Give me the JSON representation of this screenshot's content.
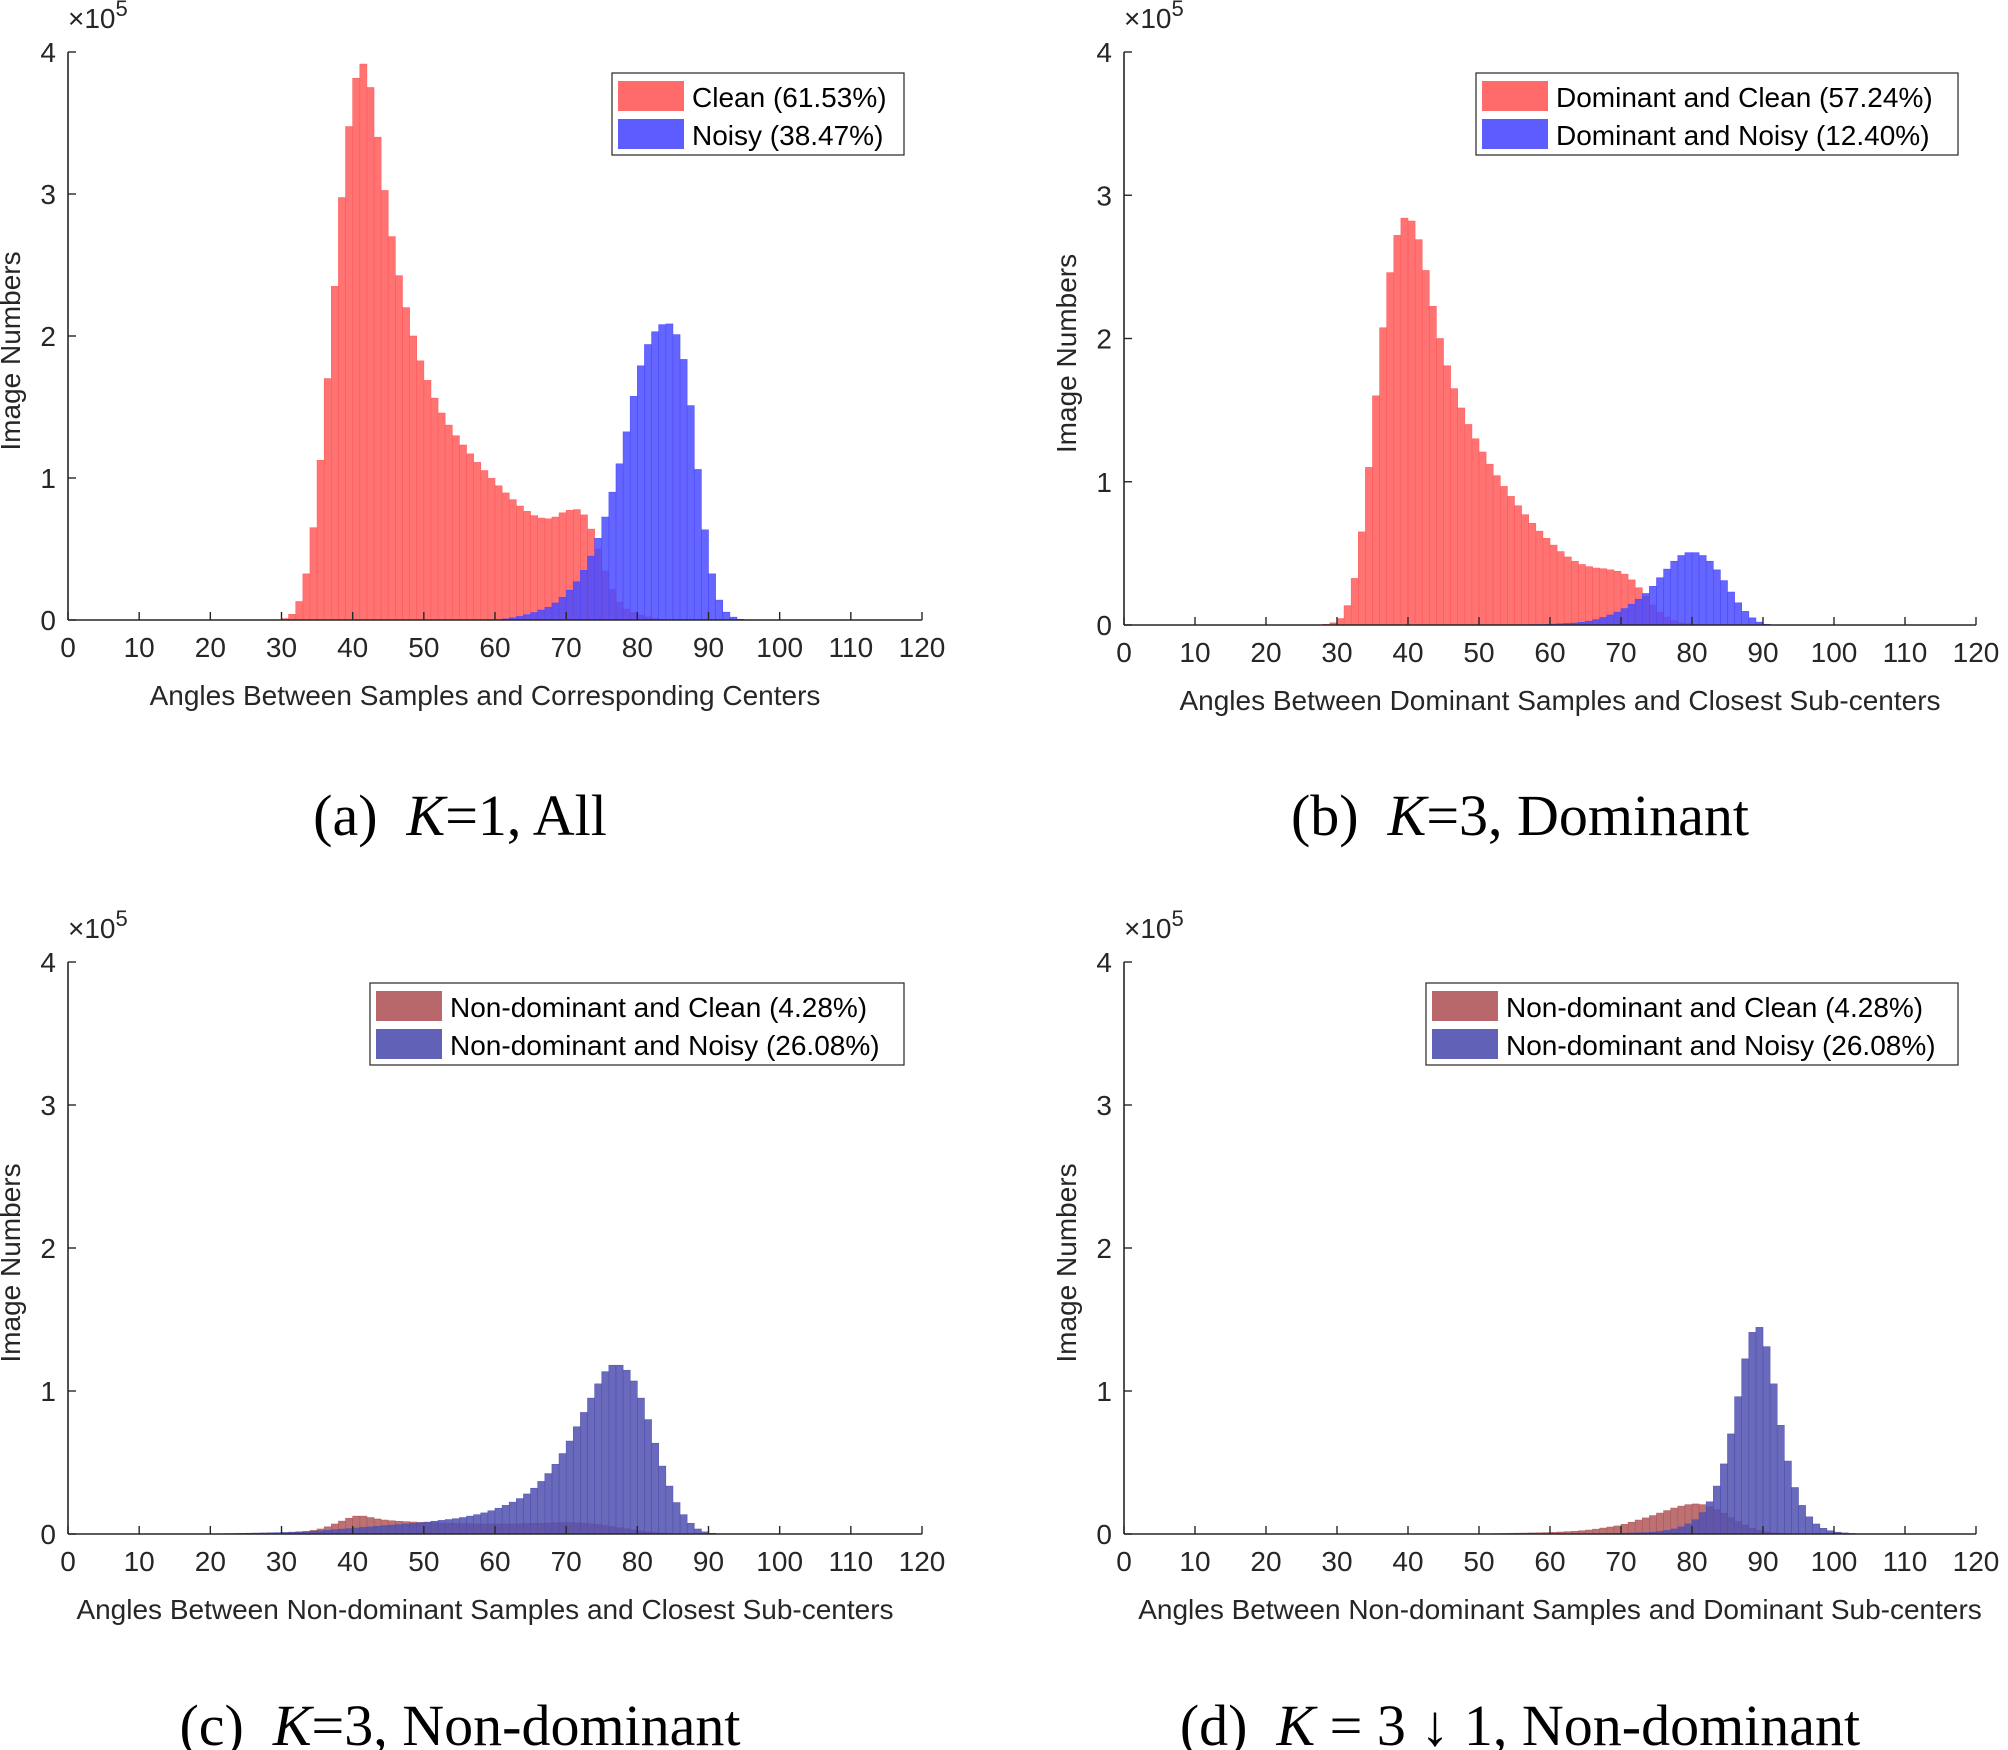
{
  "chart_data": [
    {
      "type": "bar",
      "caption": {
        "prefix": "(a)",
        "k_symbol": "K",
        "rest": "=1, All"
      },
      "xlabel": "Angles Between Samples and Corresponding Centers",
      "ylabel": "Image Numbers",
      "y_multiplier": {
        "base": "×10",
        "exponent": "5"
      },
      "xlim": [
        0,
        120
      ],
      "ylim": [
        0,
        4
      ],
      "xticks": [
        "0",
        "10",
        "20",
        "30",
        "40",
        "50",
        "60",
        "70",
        "80",
        "90",
        "100",
        "110",
        "120"
      ],
      "yticks": [
        "0",
        "1",
        "2",
        "3",
        "4"
      ],
      "bin_width_degrees": 1,
      "legend_position": "top-right",
      "series": [
        {
          "name": "Clean (61.53%)",
          "color": "#ff5a5a",
          "x": [
            30,
            31,
            32,
            33,
            34,
            35,
            36,
            37,
            38,
            39,
            40,
            41,
            42,
            43,
            44,
            45,
            46,
            47,
            48,
            49,
            50,
            52,
            54,
            56,
            58,
            60,
            62,
            64,
            66,
            68,
            70,
            72,
            73,
            74,
            75,
            76,
            77,
            78,
            80,
            82,
            84
          ],
          "y": [
            0.0,
            0.02,
            0.06,
            0.2,
            0.45,
            0.85,
            1.4,
            2.0,
            2.7,
            3.25,
            3.7,
            3.93,
            3.9,
            3.6,
            3.2,
            2.85,
            2.55,
            2.3,
            2.1,
            1.9,
            1.75,
            1.5,
            1.33,
            1.2,
            1.08,
            0.97,
            0.87,
            0.78,
            0.72,
            0.71,
            0.77,
            0.78,
            0.7,
            0.58,
            0.42,
            0.27,
            0.16,
            0.09,
            0.04,
            0.015,
            0.0
          ]
        },
        {
          "name": "Noisy (38.47%)",
          "color": "#4a4aff",
          "x": [
            60,
            62,
            64,
            66,
            68,
            70,
            72,
            74,
            76,
            78,
            79,
            80,
            81,
            82,
            83,
            84,
            85,
            86,
            87,
            88,
            89,
            90,
            91,
            92,
            93,
            94,
            95
          ],
          "y": [
            0.0,
            0.01,
            0.03,
            0.06,
            0.1,
            0.18,
            0.3,
            0.5,
            0.8,
            1.2,
            1.45,
            1.7,
            1.88,
            2.0,
            2.06,
            2.1,
            2.07,
            1.95,
            1.72,
            1.3,
            0.82,
            0.45,
            0.2,
            0.08,
            0.03,
            0.01,
            0.0
          ]
        }
      ]
    },
    {
      "type": "bar",
      "caption": {
        "prefix": "(b)",
        "k_symbol": "K",
        "rest": "=3, Dominant"
      },
      "xlabel": "Angles Between Dominant Samples and Closest Sub-centers",
      "ylabel": "Image Numbers",
      "y_multiplier": {
        "base": "×10",
        "exponent": "5"
      },
      "xlim": [
        0,
        120
      ],
      "ylim": [
        0,
        4
      ],
      "xticks": [
        "0",
        "10",
        "20",
        "30",
        "40",
        "50",
        "60",
        "70",
        "80",
        "90",
        "100",
        "110",
        "120"
      ],
      "yticks": [
        "0",
        "1",
        "2",
        "3",
        "4"
      ],
      "bin_width_degrees": 1,
      "legend_position": "top-right",
      "series": [
        {
          "name": "Dominant and Clean (57.24%)",
          "color": "#ff5a5a",
          "x": [
            28,
            30,
            31,
            32,
            33,
            34,
            35,
            36,
            37,
            38,
            39,
            40,
            41,
            42,
            43,
            44,
            45,
            46,
            47,
            48,
            50,
            52,
            54,
            56,
            58,
            60,
            62,
            64,
            66,
            68,
            70,
            71,
            72,
            73,
            74,
            75,
            76,
            77,
            78,
            80,
            82
          ],
          "y": [
            0.0,
            0.02,
            0.07,
            0.2,
            0.45,
            0.85,
            1.35,
            1.85,
            2.3,
            2.62,
            2.82,
            2.86,
            2.78,
            2.6,
            2.35,
            2.1,
            1.9,
            1.72,
            1.58,
            1.45,
            1.25,
            1.08,
            0.93,
            0.8,
            0.68,
            0.58,
            0.49,
            0.43,
            0.4,
            0.39,
            0.37,
            0.34,
            0.29,
            0.23,
            0.17,
            0.11,
            0.07,
            0.04,
            0.02,
            0.005,
            0.0
          ]
        },
        {
          "name": "Dominant and Noisy (12.40%)",
          "color": "#4a4aff",
          "x": [
            55,
            60,
            64,
            66,
            68,
            70,
            72,
            74,
            75,
            76,
            77,
            78,
            79,
            80,
            81,
            82,
            83,
            84,
            85,
            86,
            87,
            88,
            89,
            90,
            91
          ],
          "y": [
            0.0,
            0.005,
            0.015,
            0.03,
            0.06,
            0.1,
            0.16,
            0.24,
            0.3,
            0.36,
            0.42,
            0.47,
            0.5,
            0.51,
            0.5,
            0.47,
            0.42,
            0.35,
            0.27,
            0.19,
            0.12,
            0.07,
            0.03,
            0.01,
            0.0
          ]
        }
      ]
    },
    {
      "type": "bar",
      "caption": {
        "prefix": "(c)",
        "k_symbol": "K",
        "rest": "=3, Non-dominant"
      },
      "xlabel": "Angles Between Non-dominant Samples and Closest Sub-centers",
      "ylabel": "Image Numbers",
      "y_multiplier": {
        "base": "×10",
        "exponent": "5"
      },
      "xlim": [
        0,
        120
      ],
      "ylim": [
        0,
        4
      ],
      "xticks": [
        "0",
        "10",
        "20",
        "30",
        "40",
        "50",
        "60",
        "70",
        "80",
        "90",
        "100",
        "110",
        "120"
      ],
      "yticks": [
        "0",
        "1",
        "2",
        "3",
        "4"
      ],
      "bin_width_degrees": 1,
      "legend_position": "top-right",
      "series": [
        {
          "name": "Non-dominant and Clean (4.28%)",
          "color": "#b0585a",
          "x": [
            30,
            32,
            34,
            36,
            38,
            40,
            41,
            42,
            44,
            46,
            48,
            50,
            54,
            58,
            62,
            66,
            70,
            72,
            74,
            76,
            78,
            80,
            82,
            84,
            86
          ],
          "y": [
            0.0,
            0.01,
            0.02,
            0.04,
            0.08,
            0.12,
            0.13,
            0.12,
            0.1,
            0.09,
            0.085,
            0.08,
            0.075,
            0.07,
            0.07,
            0.075,
            0.08,
            0.078,
            0.07,
            0.055,
            0.04,
            0.025,
            0.012,
            0.005,
            0.0
          ]
        },
        {
          "name": "Non-dominant and Noisy (26.08%)",
          "color": "#5050b0",
          "x": [
            20,
            30,
            35,
            40,
            45,
            50,
            55,
            58,
            60,
            62,
            64,
            66,
            68,
            70,
            72,
            74,
            75,
            76,
            77,
            78,
            79,
            80,
            81,
            82,
            83,
            84,
            85,
            86,
            87,
            88,
            89,
            90,
            91
          ],
          "y": [
            0.0,
            0.01,
            0.02,
            0.04,
            0.06,
            0.08,
            0.11,
            0.14,
            0.17,
            0.21,
            0.26,
            0.34,
            0.45,
            0.6,
            0.8,
            1.0,
            1.1,
            1.17,
            1.19,
            1.17,
            1.12,
            1.02,
            0.88,
            0.72,
            0.55,
            0.4,
            0.27,
            0.17,
            0.1,
            0.05,
            0.02,
            0.01,
            0.0
          ]
        }
      ]
    },
    {
      "type": "bar",
      "caption": {
        "prefix": "(d)",
        "k_symbol": "K",
        "rest": " = 3 ↓ 1, Non-dominant"
      },
      "xlabel": "Angles Between Non-dominant Samples and Dominant Sub-centers",
      "ylabel": "Image Numbers",
      "y_multiplier": {
        "base": "×10",
        "exponent": "5"
      },
      "xlim": [
        0,
        120
      ],
      "ylim": [
        0,
        4
      ],
      "xticks": [
        "0",
        "10",
        "20",
        "30",
        "40",
        "50",
        "60",
        "70",
        "80",
        "90",
        "100",
        "110",
        "120"
      ],
      "yticks": [
        "0",
        "1",
        "2",
        "3",
        "4"
      ],
      "bin_width_degrees": 1,
      "legend_position": "top-right",
      "series": [
        {
          "name": "Non-dominant and Clean (4.28%)",
          "color": "#b0585a",
          "x": [
            50,
            55,
            60,
            64,
            66,
            68,
            70,
            72,
            74,
            76,
            78,
            79,
            80,
            81,
            82,
            83,
            84,
            85,
            86,
            87,
            88,
            89,
            90,
            92,
            94
          ],
          "y": [
            0.0,
            0.005,
            0.01,
            0.02,
            0.03,
            0.045,
            0.06,
            0.09,
            0.12,
            0.155,
            0.19,
            0.2,
            0.21,
            0.21,
            0.2,
            0.18,
            0.16,
            0.13,
            0.1,
            0.075,
            0.05,
            0.03,
            0.02,
            0.005,
            0.0
          ]
        },
        {
          "name": "Non-dominant and Noisy (26.08%)",
          "color": "#5050b0",
          "x": [
            65,
            70,
            74,
            76,
            78,
            80,
            81,
            82,
            83,
            84,
            85,
            86,
            87,
            88,
            89,
            90,
            91,
            92,
            93,
            94,
            95,
            96,
            97,
            98,
            99,
            100,
            102,
            104
          ],
          "y": [
            0.0,
            0.005,
            0.01,
            0.02,
            0.04,
            0.08,
            0.12,
            0.18,
            0.27,
            0.4,
            0.58,
            0.82,
            1.1,
            1.35,
            1.47,
            1.42,
            1.2,
            0.9,
            0.62,
            0.4,
            0.25,
            0.15,
            0.09,
            0.05,
            0.03,
            0.015,
            0.005,
            0.0
          ]
        }
      ]
    }
  ]
}
